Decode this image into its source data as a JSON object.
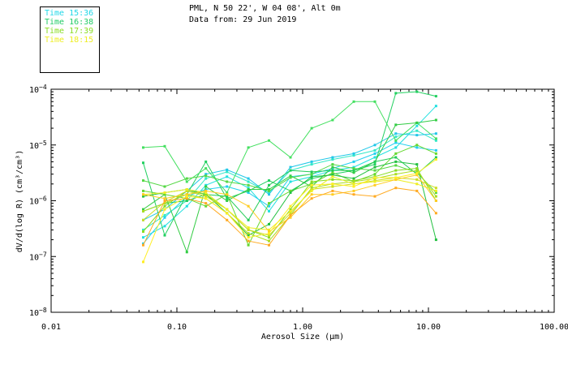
{
  "header": {
    "line1": "PML, N 50 22', W 04 08', Alt 0m",
    "line2": "Data from: 29 Jun 2019"
  },
  "legend": [
    {
      "label": "Time 15:36",
      "color": "#22d8e8"
    },
    {
      "label": "Time 16:38",
      "color": "#22cc66"
    },
    {
      "label": "Time 17:39",
      "color": "#88dd22"
    },
    {
      "label": "Time 18:15",
      "color": "#eeee22"
    }
  ],
  "chart_data": {
    "type": "line",
    "xlabel": "Aerosol Size (μm)",
    "ylabel": "dV/d(log R) (cm³/cm³)",
    "x_scale": "log",
    "y_scale": "log",
    "xlim": [
      0.01,
      100
    ],
    "ylim": [
      1e-08,
      0.0001
    ],
    "x_ticks": [
      {
        "value": 0.01,
        "label": "0.01"
      },
      {
        "value": 0.1,
        "label": "0.10"
      },
      {
        "value": 1,
        "label": "1.00"
      },
      {
        "value": 10,
        "label": "10.00"
      },
      {
        "value": 100,
        "label": "100.00"
      }
    ],
    "y_ticks": [
      {
        "value": 1e-08,
        "mantissa": "10",
        "exp": "−8"
      },
      {
        "value": 1e-07,
        "mantissa": "10",
        "exp": "−7"
      },
      {
        "value": 1e-06,
        "mantissa": "10",
        "exp": "−6"
      },
      {
        "value": 1e-05,
        "mantissa": "10",
        "exp": "−5"
      },
      {
        "value": 0.0001,
        "mantissa": "10",
        "exp": "−4"
      }
    ],
    "x": [
      0.054,
      0.08,
      0.12,
      0.17,
      0.25,
      0.37,
      0.54,
      0.8,
      1.18,
      1.73,
      2.55,
      3.75,
      5.5,
      8.1,
      11.5
    ],
    "series": [
      {
        "color": "#22e0e0",
        "values": [
          2.2e-07,
          3.5e-07,
          8e-07,
          1.9e-06,
          2.7e-06,
          1.7e-06,
          6.5e-07,
          2.2e-06,
          2.7e-06,
          3.5e-06,
          4e-06,
          6e-06,
          9e-06,
          2.2e-05,
          5e-05
        ]
      },
      {
        "color": "#22d0f0",
        "values": [
          1.7e-07,
          5e-07,
          1.2e-06,
          1.6e-06,
          1.8e-06,
          1.4e-06,
          8e-07,
          2.7e-06,
          3e-06,
          3.8e-06,
          5e-06,
          7e-06,
          1.1e-05,
          9e-06,
          8e-06
        ]
      },
      {
        "color": "#33e8c8",
        "values": [
          3e-07,
          5.5e-07,
          1e-06,
          2.5e-06,
          3.3e-06,
          2.2e-06,
          1.4e-06,
          3.5e-06,
          4.5e-06,
          5.5e-06,
          6.5e-06,
          8e-06,
          1.4e-05,
          1.8e-05,
          1.2e-05
        ]
      },
      {
        "color": "#22c8e8",
        "values": [
          4.5e-07,
          7e-07,
          1.5e-06,
          3e-06,
          3.6e-06,
          2.5e-06,
          1.3e-06,
          4e-06,
          5e-06,
          6e-06,
          7e-06,
          1e-05,
          1.6e-05,
          1.5e-05,
          1.6e-05
        ]
      },
      {
        "color": "#22d060",
        "values": [
          4.8e-06,
          2.4e-07,
          1.3e-06,
          5e-06,
          1.1e-06,
          1.5e-06,
          2.3e-06,
          1.5e-06,
          2.5e-06,
          3e-06,
          3.5e-06,
          4.5e-06,
          8.5e-05,
          9e-05,
          7.5e-05
        ]
      },
      {
        "color": "#44e060",
        "values": [
          9e-06,
          9.5e-06,
          2.2e-06,
          3.8e-06,
          1.4e-06,
          9e-06,
          1.2e-05,
          6e-06,
          2e-05,
          2.8e-05,
          6e-05,
          6e-05,
          1.2e-05,
          2.5e-05,
          1.3e-05
        ]
      },
      {
        "color": "#33cc44",
        "values": [
          7e-07,
          1.3e-06,
          1.2e-07,
          1.8e-06,
          1e-06,
          1.6e-06,
          1.6e-06,
          2.8e-06,
          1.8e-06,
          4e-06,
          3.2e-06,
          5e-06,
          2.3e-05,
          2.5e-05,
          2.8e-05
        ]
      },
      {
        "color": "#55d844",
        "values": [
          2.3e-06,
          1.8e-06,
          2.5e-06,
          2.8e-06,
          2.2e-06,
          1.9e-06,
          1.5e-06,
          2.6e-06,
          3e-06,
          4.5e-06,
          3.8e-06,
          3.5e-06,
          4.3e-06,
          3.2e-06,
          1.4e-06
        ]
      },
      {
        "color": "#66d830",
        "values": [
          1.5e-06,
          1.3e-06,
          1.1e-06,
          8e-07,
          1.3e-06,
          1.6e-07,
          9e-07,
          1.5e-06,
          2e-06,
          3.2e-06,
          2.2e-06,
          3e-06,
          7e-06,
          1e-05,
          7e-06
        ]
      },
      {
        "color": "#22cc55",
        "values": [
          6.5e-07,
          9e-07,
          1e-06,
          1.3e-06,
          1.2e-06,
          4.5e-07,
          1.9e-06,
          3.5e-06,
          3.3e-06,
          3.5e-06,
          3.5e-06,
          5e-06,
          6e-06,
          3e-06,
          6e-06
        ]
      },
      {
        "color": "#22c040",
        "values": [
          1.2e-06,
          1.4e-06,
          1.6e-06,
          1.3e-06,
          6e-07,
          2.4e-07,
          3.8e-07,
          1.4e-06,
          2.7e-06,
          2.9e-06,
          2.5e-06,
          4e-06,
          5e-06,
          4.5e-06,
          2e-07
        ]
      },
      {
        "color": "#88dd22",
        "values": [
          2.8e-07,
          8e-07,
          1.5e-06,
          1.3e-06,
          7e-07,
          3e-07,
          2.2e-07,
          7e-07,
          2.2e-06,
          2.4e-06,
          2.3e-06,
          2.7e-06,
          3.5e-06,
          3.8e-06,
          1e-06
        ]
      },
      {
        "color": "#aadd22",
        "values": [
          6.5e-07,
          9e-07,
          1.3e-06,
          1.1e-06,
          6e-07,
          2.6e-07,
          1.9e-07,
          5.5e-07,
          1.7e-06,
          2e-06,
          2.2e-06,
          2.5e-06,
          3e-06,
          3.5e-06,
          1.2e-06
        ]
      },
      {
        "color": "#ccdd22",
        "values": [
          4.5e-07,
          9.5e-07,
          1.5e-06,
          1.2e-06,
          7e-07,
          3e-07,
          2.4e-07,
          6e-07,
          1.6e-06,
          1.8e-06,
          2e-06,
          2.3e-06,
          2.6e-06,
          2.4e-06,
          1.7e-06
        ]
      },
      {
        "color": "#eeee22",
        "values": [
          1.3e-06,
          1.4e-06,
          1.6e-06,
          1.4e-06,
          7e-07,
          3.3e-07,
          3e-07,
          6.5e-07,
          1.5e-06,
          2.7e-06,
          2e-06,
          2.2e-06,
          2.4e-06,
          2e-06,
          1.5e-06
        ]
      },
      {
        "color": "#ffcc22",
        "values": [
          1.3e-06,
          1.1e-06,
          1.3e-06,
          1.5e-06,
          1.3e-06,
          8e-07,
          2.8e-07,
          5e-07,
          1.3e-06,
          1.3e-06,
          1.5e-06,
          1.9e-06,
          2.4e-06,
          2.9e-06,
          1e-06
        ]
      },
      {
        "color": "#ffaa22",
        "values": [
          1.6e-07,
          1e-06,
          1.1e-06,
          9e-07,
          4.5e-07,
          1.9e-07,
          1.6e-07,
          5.5e-07,
          1.1e-06,
          1.5e-06,
          1.3e-06,
          1.2e-06,
          1.7e-06,
          1.5e-06,
          6e-07
        ]
      },
      {
        "color": "#ffee22",
        "values": [
          8e-08,
          7e-07,
          1.2e-06,
          1.1e-06,
          6e-07,
          2.2e-07,
          2.6e-07,
          8e-07,
          1.9e-06,
          2e-06,
          1.8e-06,
          2.6e-06,
          2.6e-06,
          3.1e-06,
          5.5e-06
        ]
      }
    ]
  }
}
